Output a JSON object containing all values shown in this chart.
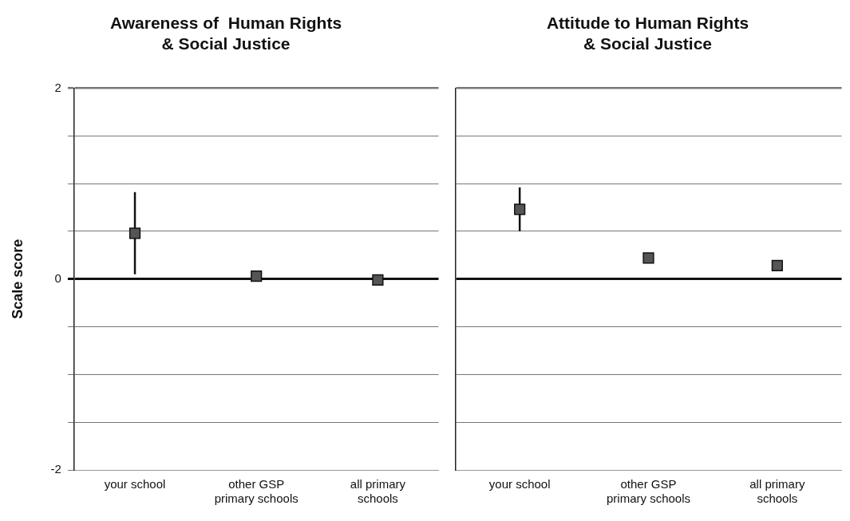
{
  "chart_data": [
    {
      "type": "scatter",
      "title": "Awareness of  Human Rights\n& Social Justice",
      "ylabel": "Scale score",
      "categories": [
        "your school",
        "other GSP primary schools",
        "all primary schools"
      ],
      "series": [
        {
          "color": "#555555",
          "values": [
            0.48,
            0.03,
            -0.01
          ],
          "errors": [
            0.43,
            null,
            null
          ]
        }
      ],
      "ylim": [
        -2,
        2
      ],
      "yticks": [
        -2,
        {
          "value": -1.5,
          "label": null
        },
        {
          "value": -1,
          "label": null
        },
        {
          "value": -0.5,
          "label": null
        },
        0,
        {
          "value": 0.5,
          "label": null
        },
        {
          "value": 1,
          "label": null
        },
        {
          "value": 1.5,
          "label": null
        },
        2
      ],
      "grid": "y",
      "marker": "square"
    },
    {
      "type": "scatter",
      "title": "Attitude to Human Rights\n& Social Justice",
      "categories": [
        "your school",
        "other GSP primary schools",
        "all primary schools"
      ],
      "series": [
        {
          "color": "#555555",
          "values": [
            0.73,
            0.22,
            0.14
          ],
          "errors": [
            0.23,
            null,
            null
          ]
        }
      ],
      "ylim": [
        -2,
        2
      ],
      "yticks": [
        -2,
        {
          "value": -1.5,
          "label": null
        },
        {
          "value": -1,
          "label": null
        },
        {
          "value": -0.5,
          "label": null
        },
        0,
        {
          "value": 0.5,
          "label": null
        },
        {
          "value": 1,
          "label": null
        },
        {
          "value": 1.5,
          "label": null
        },
        2
      ],
      "grid": "y",
      "marker": "square",
      "tick_labels": "x"
    }
  ]
}
